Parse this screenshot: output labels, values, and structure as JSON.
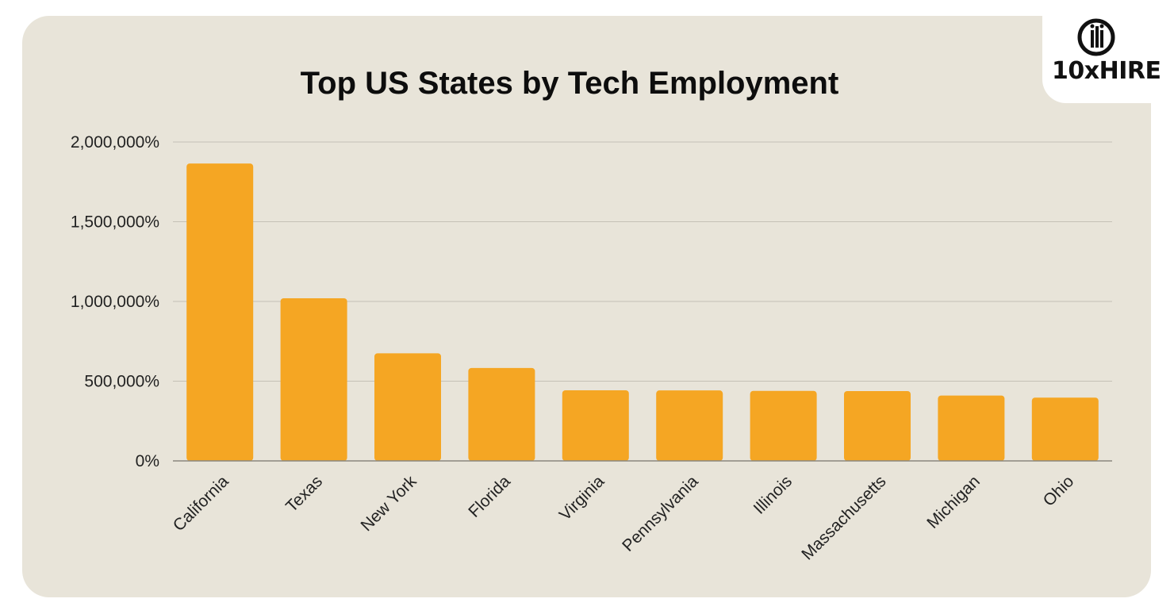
{
  "brand": {
    "logo_text": "10xHIRE"
  },
  "colors": {
    "bar": "#f5a623",
    "background": "#e8e4d9",
    "grid": "#c5c1b6"
  },
  "chart_data": {
    "type": "bar",
    "title": "Top US States by Tech Employment",
    "xlabel": "",
    "ylabel": "",
    "categories": [
      "California",
      "Texas",
      "New York",
      "Florida",
      "Virginia",
      "Pennsylvania",
      "Illinois",
      "Massachusetts",
      "Michigan",
      "Ohio"
    ],
    "values": [
      1865000,
      1020000,
      675000,
      583000,
      443000,
      442000,
      439000,
      438000,
      410000,
      397000
    ],
    "ylim": [
      0,
      2000000
    ],
    "yticks": [
      0,
      500000,
      1000000,
      1500000,
      2000000
    ],
    "ytick_labels": [
      "0%",
      "500,000%",
      "1,000,000%",
      "1,500,000%",
      "2,000,000%"
    ],
    "grid": true,
    "legend": "none"
  }
}
